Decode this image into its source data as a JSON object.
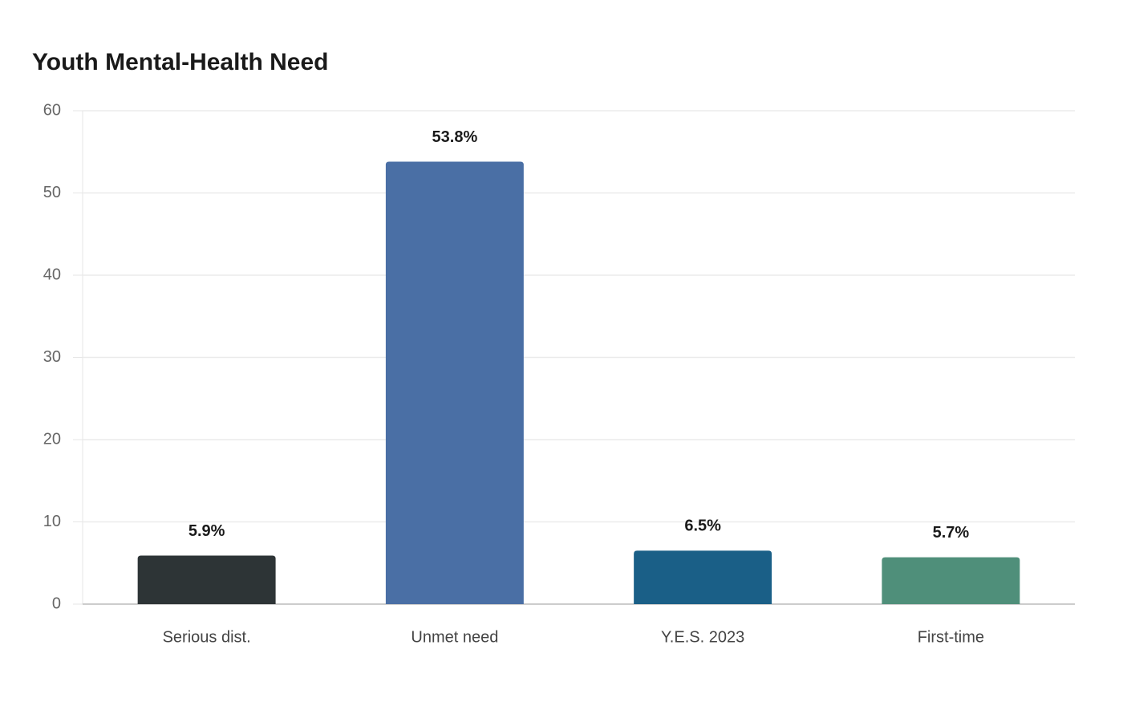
{
  "chart_data": {
    "type": "bar",
    "title": "Youth Mental-Health Need",
    "categories": [
      "Serious dist.",
      "Unmet need",
      "Y.E.S. 2023",
      "First-time"
    ],
    "values": [
      5.9,
      53.8,
      6.5,
      5.7
    ],
    "value_labels": [
      "5.9%",
      "53.8%",
      "6.5%",
      "5.7%"
    ],
    "colors": [
      "#2d3436",
      "#4a6fa5",
      "#1a5f87",
      "#4f8f7a"
    ],
    "ylim": [
      0,
      60
    ],
    "yticks": [
      0,
      10,
      20,
      30,
      40,
      50,
      60
    ],
    "grid": true
  }
}
